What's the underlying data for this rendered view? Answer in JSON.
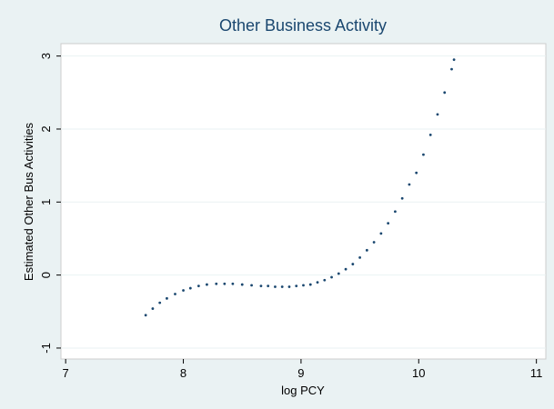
{
  "chart_data": {
    "type": "scatter",
    "title": "Other Business Activity",
    "x_label": "log PCY",
    "y_label": "Estimated Other Bus Activities",
    "color": "#1a476f",
    "grid": true,
    "xlim": [
      6.96,
      11.08
    ],
    "ylim": [
      -1.15,
      3.17
    ],
    "xticks": [
      7,
      8,
      9,
      10,
      11
    ],
    "yticks": [
      -1,
      0,
      1,
      2,
      3
    ],
    "x": [
      7.68,
      7.74,
      7.8,
      7.86,
      7.93,
      8.0,
      8.06,
      8.13,
      8.2,
      8.28,
      8.35,
      8.42,
      8.5,
      8.58,
      8.66,
      8.72,
      8.78,
      8.84,
      8.9,
      8.96,
      9.02,
      9.08,
      9.14,
      9.2,
      9.26,
      9.32,
      9.38,
      9.44,
      9.5,
      9.56,
      9.62,
      9.68,
      9.74,
      9.8,
      9.86,
      9.92,
      9.98,
      10.04,
      10.1,
      10.16,
      10.22,
      10.28,
      10.3
    ],
    "values": [
      -0.55,
      -0.46,
      -0.38,
      -0.32,
      -0.26,
      -0.21,
      -0.18,
      -0.15,
      -0.13,
      -0.12,
      -0.12,
      -0.12,
      -0.13,
      -0.14,
      -0.15,
      -0.15,
      -0.16,
      -0.16,
      -0.16,
      -0.15,
      -0.14,
      -0.13,
      -0.1,
      -0.07,
      -0.03,
      0.02,
      0.08,
      0.15,
      0.24,
      0.34,
      0.45,
      0.57,
      0.71,
      0.87,
      1.05,
      1.24,
      1.4,
      1.65,
      1.92,
      2.2,
      2.5,
      2.82,
      2.95
    ]
  }
}
